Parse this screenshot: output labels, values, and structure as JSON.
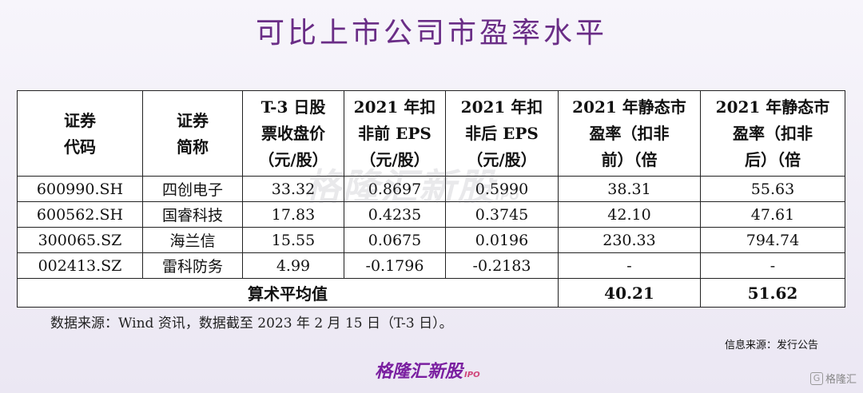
{
  "title": "可比上市公司市盈率水平",
  "table": {
    "headers": [
      [
        "证券",
        "代码"
      ],
      [
        "证券",
        "简称"
      ],
      [
        "T-3 日股",
        "票收盘价",
        "（元/股）"
      ],
      [
        "2021 年扣",
        "非前 EPS",
        "（元/股）"
      ],
      [
        "2021 年扣",
        "非后 EPS",
        "（元/股）"
      ],
      [
        "2021 年静态市",
        "盈率（扣非",
        "前）（倍"
      ],
      [
        "2021 年静态市",
        "盈率（扣非",
        "后）（倍"
      ]
    ],
    "rows": [
      [
        "600990.SH",
        "四创电子",
        "33.32",
        "0.8697",
        "0.5990",
        "38.31",
        "55.63"
      ],
      [
        "600562.SH",
        "国睿科技",
        "17.83",
        "0.4235",
        "0.3745",
        "42.10",
        "47.61"
      ],
      [
        "300065.SZ",
        "海兰信",
        "15.55",
        "0.0675",
        "0.0196",
        "230.33",
        "794.74"
      ],
      [
        "002413.SZ",
        "雷科防务",
        "4.99",
        "-0.1796",
        "-0.2183",
        "-",
        "-"
      ]
    ],
    "footer": {
      "label": "算术平均值",
      "pe_before": "40.21",
      "pe_after": "51.62"
    }
  },
  "watermark": {
    "text": "格隆汇新股",
    "suffix": "IPO"
  },
  "source_note": "数据来源：Wind 资讯，数据截至 2023 年 2 月 15 日（T-3 日）。",
  "info_source": "信息来源：发行公告",
  "brand": {
    "text": "格隆汇新股",
    "suffix": "IPO"
  },
  "corner_badge": {
    "icon": "G",
    "text": "格隆汇"
  },
  "colors": {
    "title": "#6a2d86",
    "brand": "#7a1fa0"
  }
}
